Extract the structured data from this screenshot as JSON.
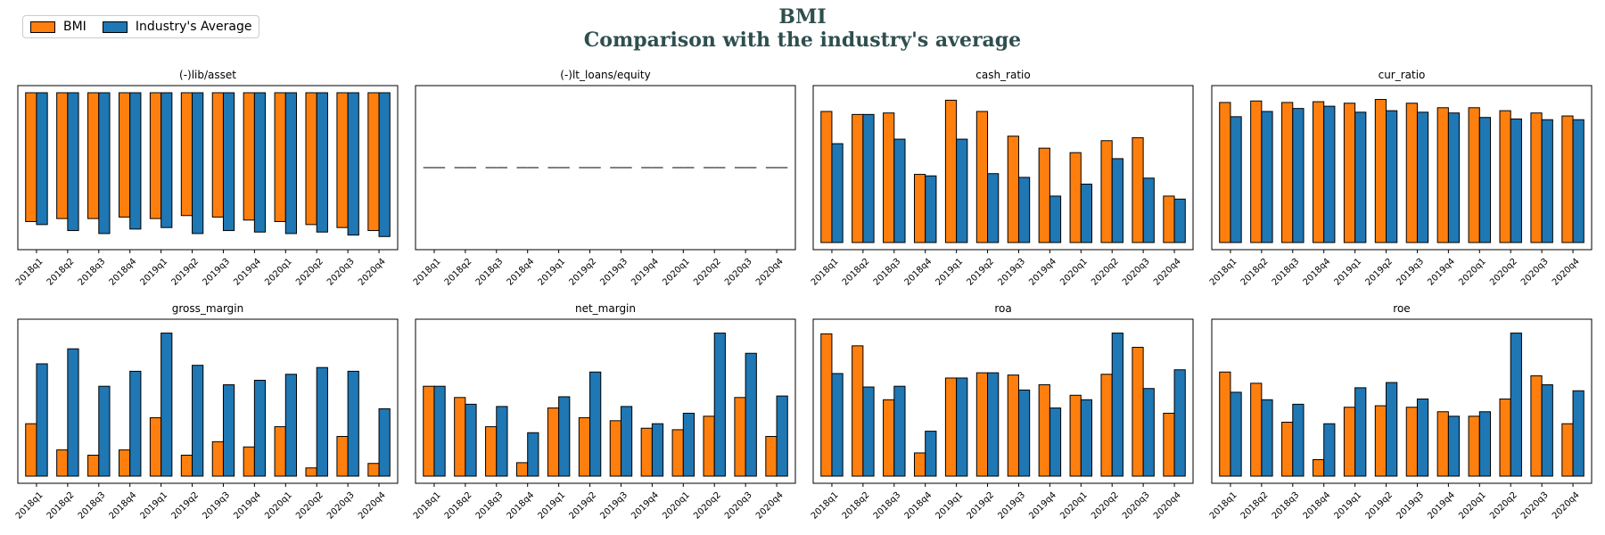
{
  "title": "BMI",
  "subtitle": "Comparison with the industry's average",
  "legend": [
    {
      "name": "BMI",
      "color": "#ff7f0e"
    },
    {
      "name": "Industry's Average",
      "color": "#1f77b4"
    }
  ],
  "chart_data": [
    {
      "type": "bar",
      "title": "(-)lib/asset",
      "categories": [
        "2018q1",
        "2018q2",
        "2018q3",
        "2018q4",
        "2019q1",
        "2019q2",
        "2019q3",
        "2019q4",
        "2020q1",
        "2020q2",
        "2020q3",
        "2020q4"
      ],
      "ylim": [
        -1.0,
        0.0
      ],
      "series": [
        {
          "name": "BMI",
          "values": [
            -0.86,
            -0.84,
            -0.84,
            -0.83,
            -0.84,
            -0.82,
            -0.83,
            -0.85,
            -0.86,
            -0.88,
            -0.9,
            -0.92
          ]
        },
        {
          "name": "Industry's Average",
          "values": [
            -0.88,
            -0.92,
            -0.94,
            -0.91,
            -0.9,
            -0.94,
            -0.92,
            -0.93,
            -0.94,
            -0.93,
            -0.95,
            -0.96
          ]
        }
      ]
    },
    {
      "type": "bar",
      "title": "(-)lt_loans/equity",
      "categories": [
        "2018q1",
        "2018q2",
        "2018q3",
        "2018q4",
        "2019q1",
        "2019q2",
        "2019q3",
        "2019q4",
        "2020q1",
        "2020q2",
        "2020q3",
        "2020q4"
      ],
      "ylim": [
        -0.05,
        0.05
      ],
      "series": [
        {
          "name": "BMI",
          "values": [
            0,
            0,
            0,
            0,
            0,
            0,
            0,
            0,
            0,
            0,
            0,
            0
          ]
        },
        {
          "name": "Industry's Average",
          "values": [
            0,
            0,
            0,
            0,
            0,
            0,
            0,
            0,
            0,
            0,
            0,
            0
          ]
        }
      ]
    },
    {
      "type": "bar",
      "title": "cash_ratio",
      "categories": [
        "2018q1",
        "2018q2",
        "2018q3",
        "2018q4",
        "2019q1",
        "2019q2",
        "2019q3",
        "2019q4",
        "2020q1",
        "2020q2",
        "2020q3",
        "2020q4"
      ],
      "ylim": [
        0,
        1.0
      ],
      "series": [
        {
          "name": "BMI",
          "values": [
            0.875,
            0.855,
            0.865,
            0.455,
            0.95,
            0.875,
            0.71,
            0.63,
            0.6,
            0.68,
            0.7,
            0.31
          ]
        },
        {
          "name": "Industry's Average",
          "values": [
            0.66,
            0.855,
            0.69,
            0.445,
            0.69,
            0.46,
            0.435,
            0.31,
            0.39,
            0.56,
            0.43,
            0.29
          ]
        }
      ]
    },
    {
      "type": "bar",
      "title": "cur_ratio",
      "categories": [
        "2018q1",
        "2018q2",
        "2018q3",
        "2018q4",
        "2019q1",
        "2019q2",
        "2019q3",
        "2019q4",
        "2020q1",
        "2020q2",
        "2020q3",
        "2020q4"
      ],
      "ylim": [
        0,
        1.0
      ],
      "series": [
        {
          "name": "BMI",
          "values": [
            0.935,
            0.945,
            0.935,
            0.94,
            0.93,
            0.955,
            0.93,
            0.9,
            0.9,
            0.88,
            0.865,
            0.845
          ]
        },
        {
          "name": "Industry's Average",
          "values": [
            0.84,
            0.875,
            0.895,
            0.91,
            0.87,
            0.88,
            0.87,
            0.865,
            0.835,
            0.825,
            0.82,
            0.82
          ]
        }
      ]
    },
    {
      "type": "bar",
      "title": "gross_margin",
      "categories": [
        "2018q1",
        "2018q2",
        "2018q3",
        "2018q4",
        "2019q1",
        "2019q2",
        "2019q3",
        "2019q4",
        "2020q1",
        "2020q2",
        "2020q3",
        "2020q4"
      ],
      "ylim": [
        0,
        1.0
      ],
      "series": [
        {
          "name": "BMI",
          "values": [
            0.35,
            0.175,
            0.14,
            0.175,
            0.39,
            0.14,
            0.23,
            0.195,
            0.33,
            0.055,
            0.265,
            0.085
          ]
        },
        {
          "name": "Industry's Average",
          "values": [
            0.75,
            0.85,
            0.6,
            0.7,
            0.955,
            0.74,
            0.61,
            0.64,
            0.68,
            0.725,
            0.7,
            0.45
          ]
        }
      ]
    },
    {
      "type": "bar",
      "title": "net_margin",
      "categories": [
        "2018q1",
        "2018q2",
        "2018q3",
        "2018q4",
        "2019q1",
        "2019q2",
        "2019q3",
        "2019q4",
        "2020q1",
        "2020q2",
        "2020q3",
        "2020q4"
      ],
      "ylim": [
        0,
        1.0
      ],
      "series": [
        {
          "name": "BMI",
          "values": [
            0.6,
            0.525,
            0.33,
            0.09,
            0.455,
            0.39,
            0.37,
            0.32,
            0.31,
            0.4,
            0.525,
            0.265
          ]
        },
        {
          "name": "Industry's Average",
          "values": [
            0.6,
            0.48,
            0.465,
            0.29,
            0.53,
            0.695,
            0.465,
            0.35,
            0.42,
            0.955,
            0.82,
            0.535
          ]
        }
      ]
    },
    {
      "type": "bar",
      "title": "roa",
      "categories": [
        "2018q1",
        "2018q2",
        "2018q3",
        "2018q4",
        "2019q1",
        "2019q2",
        "2019q3",
        "2019q4",
        "2020q1",
        "2020q2",
        "2020q3",
        "2020q4"
      ],
      "ylim": [
        0,
        1.0
      ],
      "series": [
        {
          "name": "BMI",
          "values": [
            0.95,
            0.87,
            0.51,
            0.155,
            0.655,
            0.69,
            0.675,
            0.61,
            0.54,
            0.68,
            0.86,
            0.42
          ]
        },
        {
          "name": "Industry's Average",
          "values": [
            0.685,
            0.595,
            0.6,
            0.3,
            0.655,
            0.69,
            0.575,
            0.455,
            0.51,
            0.955,
            0.585,
            0.71
          ]
        }
      ]
    },
    {
      "type": "bar",
      "title": "roe",
      "categories": [
        "2018q1",
        "2018q2",
        "2018q3",
        "2018q4",
        "2019q1",
        "2019q2",
        "2019q3",
        "2019q4",
        "2020q1",
        "2020q2",
        "2020q3",
        "2020q4"
      ],
      "ylim": [
        0,
        1.0
      ],
      "series": [
        {
          "name": "BMI",
          "values": [
            0.695,
            0.62,
            0.36,
            0.11,
            0.46,
            0.47,
            0.46,
            0.43,
            0.4,
            0.515,
            0.67,
            0.35
          ]
        },
        {
          "name": "Industry's Average",
          "values": [
            0.56,
            0.51,
            0.48,
            0.35,
            0.59,
            0.625,
            0.515,
            0.4,
            0.43,
            0.955,
            0.61,
            0.57
          ]
        }
      ]
    }
  ]
}
